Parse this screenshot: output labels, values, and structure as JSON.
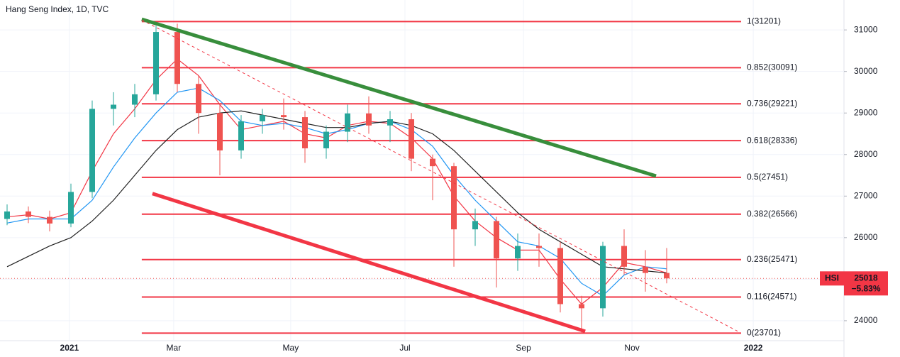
{
  "chart_data": {
    "type": "candlestick",
    "title": "Hang Seng Index, 1D, TVC",
    "xlim": [
      -0.333,
      39.333
    ],
    "xticks": [
      {
        "value": 2.93,
        "label": "2021"
      },
      {
        "value": 7.83,
        "label": "Mar"
      },
      {
        "value": 13.33,
        "label": "May"
      },
      {
        "value": 18.7,
        "label": "Jul"
      },
      {
        "value": 24.27,
        "label": "Sep"
      },
      {
        "value": 29.37,
        "label": "Nov"
      },
      {
        "value": 35.07,
        "label": "2022"
      }
    ],
    "ylim": [
      23520,
      31720
    ],
    "yticks": [
      24000,
      25000,
      26000,
      27000,
      28000,
      29000,
      30000,
      31000
    ],
    "grid": true,
    "up_color": "#26a69a",
    "down_color": "#ef5350",
    "open": [
      26450,
      26630,
      26500,
      26340,
      27100,
      29100,
      29200,
      29450,
      30950,
      29700,
      29000,
      28100,
      28800,
      28950,
      28900,
      28150,
      28550,
      28990,
      28700,
      28850,
      27900,
      27720,
      26200,
      26400,
      25500,
      25800,
      25750,
      24400,
      24300,
      25800,
      25300,
      25150
    ],
    "high": [
      26800,
      26750,
      26650,
      27300,
      29300,
      29500,
      29700,
      31100,
      31150,
      29900,
      29200,
      28950,
      29100,
      29350,
      29050,
      28700,
      29200,
      29400,
      29050,
      29000,
      28000,
      27800,
      26700,
      26500,
      26100,
      26100,
      25900,
      24600,
      25900,
      26200,
      25700,
      25750
    ],
    "low": [
      26300,
      26350,
      26150,
      26250,
      26950,
      28700,
      28900,
      29300,
      29500,
      28500,
      27500,
      27900,
      28500,
      28600,
      27800,
      27900,
      28300,
      28500,
      28300,
      27600,
      26900,
      25300,
      25800,
      24800,
      25200,
      25300,
      24200,
      23700,
      24100,
      25100,
      24700,
      24900
    ],
    "close": [
      26630,
      26500,
      26340,
      27100,
      29100,
      29200,
      29450,
      30950,
      29700,
      29000,
      28100,
      28800,
      28950,
      28900,
      28150,
      28550,
      28990,
      28700,
      28850,
      27900,
      27720,
      26200,
      26400,
      25500,
      25800,
      25750,
      24400,
      24300,
      25800,
      25300,
      25150,
      25020
    ],
    "series": [
      {
        "color": "#f23645",
        "values": [
          26500,
          26550,
          26450,
          26600,
          27600,
          28500,
          29100,
          29800,
          30300,
          29900,
          29200,
          28600,
          28700,
          28800,
          28500,
          28400,
          28700,
          28800,
          28750,
          28400,
          27900,
          27000,
          26400,
          26000,
          25700,
          25700,
          25000,
          24400,
          24800,
          25400,
          25300,
          25150
        ]
      },
      {
        "color": "#2196f3",
        "values": [
          26350,
          26450,
          26450,
          26450,
          26900,
          27700,
          28400,
          29000,
          29500,
          29600,
          29300,
          28800,
          28700,
          28750,
          28650,
          28500,
          28600,
          28750,
          28800,
          28600,
          28200,
          27500,
          26900,
          26400,
          25900,
          25800,
          25500,
          24900,
          24600,
          25100,
          25300,
          25250
        ]
      },
      {
        "color": "#222222",
        "values": [
          25300,
          25550,
          25800,
          26000,
          26400,
          26900,
          27500,
          28100,
          28600,
          28900,
          29000,
          29050,
          28950,
          28850,
          28750,
          28650,
          28650,
          28750,
          28800,
          28700,
          28500,
          28100,
          27600,
          27100,
          26600,
          26200,
          25900,
          25600,
          25300,
          25250,
          25200,
          25150
        ]
      }
    ],
    "trendlines": [
      {
        "color": "#388e3c",
        "dashed": false,
        "x": [
          6.33,
          30.5
        ],
        "y": [
          31256,
          27484
        ]
      },
      {
        "color": "#f23645",
        "dashed": false,
        "x": [
          6.83,
          27.17
        ],
        "y": [
          27060,
          23745
        ]
      },
      {
        "color": "#f23645",
        "dashed": true,
        "x": [
          6.33,
          34.33
        ],
        "y": [
          31240,
          23750
        ]
      }
    ],
    "fib_color": "#f23645",
    "fib_x": [
      6.33,
      34.5
    ],
    "fib_levels": [
      {
        "value": 31201,
        "label": "1(31201)"
      },
      {
        "value": 30091,
        "label": "0.852(30091)"
      },
      {
        "value": 29221,
        "label": "0.736(29221)"
      },
      {
        "value": 28336,
        "label": "0.618(28336)"
      },
      {
        "value": 27451,
        "label": "0.5(27451)"
      },
      {
        "value": 26566,
        "label": "0.382(26566)"
      },
      {
        "value": 25471,
        "label": "0.236(25471)"
      },
      {
        "value": 24571,
        "label": "0.116(24571)"
      },
      {
        "value": 23701,
        "label": "0(23701)"
      }
    ],
    "last_price": {
      "symbol": "HSI",
      "value": 25018,
      "change_label": "−5.83%"
    }
  }
}
